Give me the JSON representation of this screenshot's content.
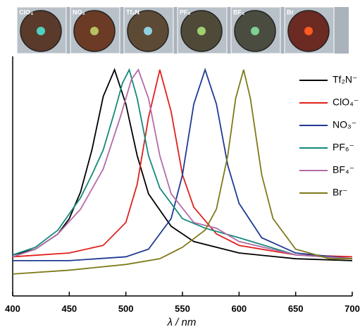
{
  "chart_data": {
    "type": "line",
    "xlabel": "λ / nm",
    "insets": [
      "ClO₄",
      "NO₃",
      "Tf₂N",
      "PF₆",
      "BF₄",
      "Br"
    ],
    "xlim": [
      400,
      700
    ],
    "xticks": [
      400,
      450,
      500,
      550,
      600,
      650,
      700
    ],
    "ylim": [
      -0.185,
      1.07
    ],
    "series": [
      {
        "name": "Tf₂N⁻",
        "color": "#000000",
        "x": [
          400,
          420,
          440,
          450,
          460,
          470,
          480,
          490,
          500,
          510,
          520,
          540,
          560,
          600,
          650,
          700
        ],
        "values": [
          0.03,
          0.06,
          0.14,
          0.22,
          0.36,
          0.58,
          0.86,
          1.0,
          0.82,
          0.55,
          0.35,
          0.18,
          0.1,
          0.04,
          0.01,
          0.0
        ]
      },
      {
        "name": "ClO₄⁻",
        "color": "#e0201b",
        "x": [
          400,
          450,
          480,
          500,
          510,
          520,
          530,
          540,
          550,
          560,
          580,
          600,
          650,
          700
        ],
        "values": [
          0.02,
          0.04,
          0.08,
          0.2,
          0.4,
          0.75,
          1.0,
          0.78,
          0.45,
          0.28,
          0.14,
          0.08,
          0.03,
          0.02
        ]
      },
      {
        "name": "NO₃⁻",
        "color": "#1f3a93",
        "x": [
          400,
          450,
          500,
          520,
          540,
          550,
          560,
          570,
          580,
          590,
          600,
          620,
          650,
          700
        ],
        "values": [
          0.0,
          0.0,
          0.02,
          0.06,
          0.22,
          0.45,
          0.82,
          1.0,
          0.82,
          0.5,
          0.3,
          0.12,
          0.04,
          0.01
        ]
      },
      {
        "name": "PF₆⁻",
        "color": "#138a7c",
        "x": [
          400,
          420,
          440,
          460,
          470,
          480,
          490,
          497,
          503,
          510,
          520,
          530,
          550,
          570,
          600,
          650,
          700
        ],
        "values": [
          0.03,
          0.07,
          0.16,
          0.33,
          0.45,
          0.58,
          0.78,
          0.93,
          1.0,
          0.85,
          0.55,
          0.38,
          0.22,
          0.17,
          0.12,
          0.03,
          0.01
        ]
      },
      {
        "name": "BF₄⁻",
        "color": "#b36ca8",
        "x": [
          400,
          420,
          440,
          460,
          480,
          495,
          505,
          511,
          520,
          530,
          540,
          560,
          580,
          600,
          650,
          700
        ],
        "values": [
          0.02,
          0.06,
          0.14,
          0.27,
          0.48,
          0.75,
          0.95,
          1.0,
          0.85,
          0.55,
          0.35,
          0.2,
          0.17,
          0.1,
          0.03,
          0.01
        ]
      },
      {
        "name": "Br⁻",
        "color": "#7d7a1a",
        "x": [
          400,
          450,
          500,
          530,
          550,
          570,
          580,
          590,
          597,
          604,
          610,
          620,
          630,
          650,
          680,
          700
        ],
        "values": [
          -0.07,
          -0.05,
          -0.02,
          0.01,
          0.07,
          0.16,
          0.27,
          0.55,
          0.85,
          1.0,
          0.85,
          0.45,
          0.22,
          0.06,
          0.01,
          0.01
        ]
      }
    ]
  }
}
